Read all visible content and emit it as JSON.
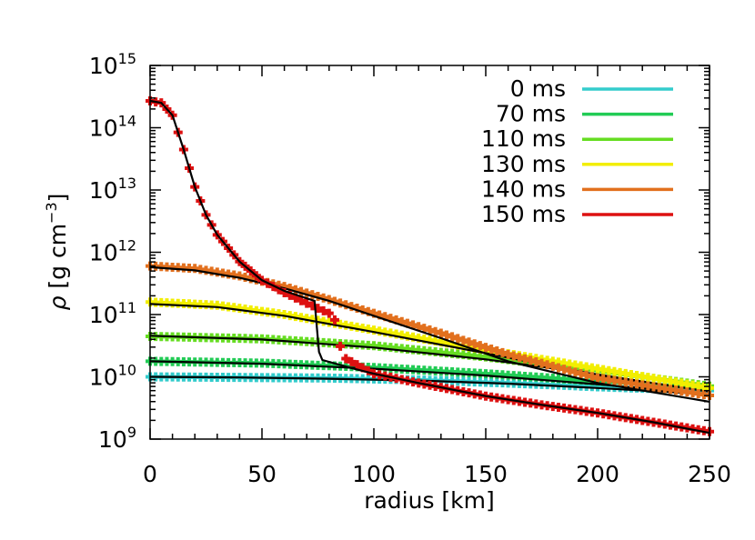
{
  "chart_data": {
    "type": "line",
    "title": "",
    "xlabel": "radius [km]",
    "ylabel_parts": {
      "symbol": "ρ",
      "unit_open": " [g cm",
      "exponent": "−3",
      "unit_close": "]"
    },
    "xlim": [
      0,
      250
    ],
    "ylim_log10": [
      9,
      15
    ],
    "y_scale": "log",
    "grid": false,
    "legend_position": "top-right",
    "x_ticks": [
      {
        "value": 0,
        "label": "0"
      },
      {
        "value": 50,
        "label": "50"
      },
      {
        "value": 100,
        "label": "100"
      },
      {
        "value": 150,
        "label": "150"
      },
      {
        "value": 200,
        "label": "200"
      },
      {
        "value": 250,
        "label": "250"
      }
    ],
    "y_ticks": [
      {
        "exp": 9,
        "base": "10",
        "sup": "9"
      },
      {
        "exp": 10,
        "base": "10",
        "sup": "10"
      },
      {
        "exp": 11,
        "base": "10",
        "sup": "11"
      },
      {
        "exp": 12,
        "base": "10",
        "sup": "12"
      },
      {
        "exp": 13,
        "base": "10",
        "sup": "13"
      },
      {
        "exp": 14,
        "base": "10",
        "sup": "14"
      },
      {
        "exp": 15,
        "base": "10",
        "sup": "15"
      }
    ],
    "fit_color": "#000000",
    "series": [
      {
        "name": "0 ms",
        "color": "#33cccc",
        "points": [
          [
            0,
            10
          ],
          [
            40,
            9.99
          ],
          [
            80,
            9.98
          ],
          [
            120,
            9.95
          ],
          [
            160,
            9.9
          ],
          [
            200,
            9.84
          ],
          [
            250,
            9.78
          ]
        ],
        "fit": [
          [
            0,
            10
          ],
          [
            40,
            9.99
          ],
          [
            80,
            9.97
          ],
          [
            120,
            9.94
          ],
          [
            160,
            9.89
          ],
          [
            200,
            9.82
          ],
          [
            250,
            9.72
          ]
        ]
      },
      {
        "name": "70 ms",
        "color": "#22cc55",
        "points": [
          [
            0,
            10.25
          ],
          [
            50,
            10.22
          ],
          [
            100,
            10.15
          ],
          [
            150,
            10.05
          ],
          [
            200,
            9.93
          ],
          [
            250,
            9.82
          ]
        ],
        "fit": [
          [
            0,
            10.25
          ],
          [
            50,
            10.21
          ],
          [
            100,
            10.13
          ],
          [
            150,
            10.02
          ],
          [
            200,
            9.88
          ],
          [
            250,
            9.72
          ]
        ]
      },
      {
        "name": "110 ms",
        "color": "#66dd22",
        "points": [
          [
            0,
            10.65
          ],
          [
            50,
            10.61
          ],
          [
            100,
            10.5
          ],
          [
            150,
            10.32
          ],
          [
            200,
            10.1
          ],
          [
            250,
            9.85
          ]
        ],
        "fit": [
          [
            0,
            10.66
          ],
          [
            50,
            10.6
          ],
          [
            100,
            10.47
          ],
          [
            150,
            10.28
          ],
          [
            200,
            10.04
          ],
          [
            250,
            9.76
          ]
        ]
      },
      {
        "name": "130 ms",
        "color": "#f2ee00",
        "points": [
          [
            0,
            11.2
          ],
          [
            30,
            11.15
          ],
          [
            60,
            11.0
          ],
          [
            100,
            10.75
          ],
          [
            150,
            10.43
          ],
          [
            200,
            10.13
          ],
          [
            250,
            9.82
          ]
        ],
        "fit": [
          [
            0,
            11.17
          ],
          [
            30,
            11.12
          ],
          [
            60,
            10.98
          ],
          [
            100,
            10.72
          ],
          [
            150,
            10.38
          ],
          [
            200,
            10.03
          ],
          [
            250,
            9.68
          ]
        ]
      },
      {
        "name": "140 ms",
        "color": "#e2701e",
        "points": [
          [
            0,
            11.78
          ],
          [
            20,
            11.74
          ],
          [
            40,
            11.62
          ],
          [
            60,
            11.45
          ],
          [
            80,
            11.24
          ],
          [
            100,
            11.02
          ],
          [
            130,
            10.7
          ],
          [
            160,
            10.36
          ],
          [
            200,
            9.98
          ],
          [
            250,
            9.7
          ]
        ],
        "fit": [
          [
            0,
            11.76
          ],
          [
            20,
            11.71
          ],
          [
            40,
            11.59
          ],
          [
            60,
            11.42
          ],
          [
            80,
            11.22
          ],
          [
            100,
            10.98
          ],
          [
            130,
            10.62
          ],
          [
            160,
            10.25
          ],
          [
            200,
            9.9
          ],
          [
            250,
            9.6
          ]
        ]
      },
      {
        "name": "150 ms",
        "color": "#dd1111",
        "points": [
          [
            0,
            14.43
          ],
          [
            5,
            14.4
          ],
          [
            10,
            14.2
          ],
          [
            15,
            13.65
          ],
          [
            20,
            13.05
          ],
          [
            25,
            12.6
          ],
          [
            30,
            12.28
          ],
          [
            40,
            11.85
          ],
          [
            50,
            11.55
          ],
          [
            60,
            11.35
          ],
          [
            70,
            11.18
          ],
          [
            80,
            11.02
          ],
          [
            82,
            11.0
          ],
          [
            86,
            10.32
          ],
          [
            100,
            10.05
          ],
          [
            120,
            9.9
          ],
          [
            150,
            9.69
          ],
          [
            175,
            9.55
          ],
          [
            200,
            9.42
          ],
          [
            225,
            9.27
          ],
          [
            250,
            9.12
          ]
        ],
        "fit": [
          [
            0,
            14.43
          ],
          [
            5,
            14.4
          ],
          [
            10,
            14.2
          ],
          [
            15,
            13.65
          ],
          [
            20,
            13.05
          ],
          [
            25,
            12.6
          ],
          [
            30,
            12.28
          ],
          [
            40,
            11.85
          ],
          [
            50,
            11.55
          ],
          [
            60,
            11.38
          ],
          [
            70,
            11.26
          ],
          [
            73.5,
            11.22
          ],
          [
            74.5,
            10.8
          ],
          [
            75.5,
            10.4
          ],
          [
            77,
            10.27
          ],
          [
            90,
            10.14
          ],
          [
            100,
            10.05
          ],
          [
            120,
            9.9
          ],
          [
            150,
            9.69
          ],
          [
            175,
            9.55
          ],
          [
            200,
            9.42
          ],
          [
            225,
            9.27
          ],
          [
            250,
            9.1
          ]
        ]
      }
    ]
  }
}
